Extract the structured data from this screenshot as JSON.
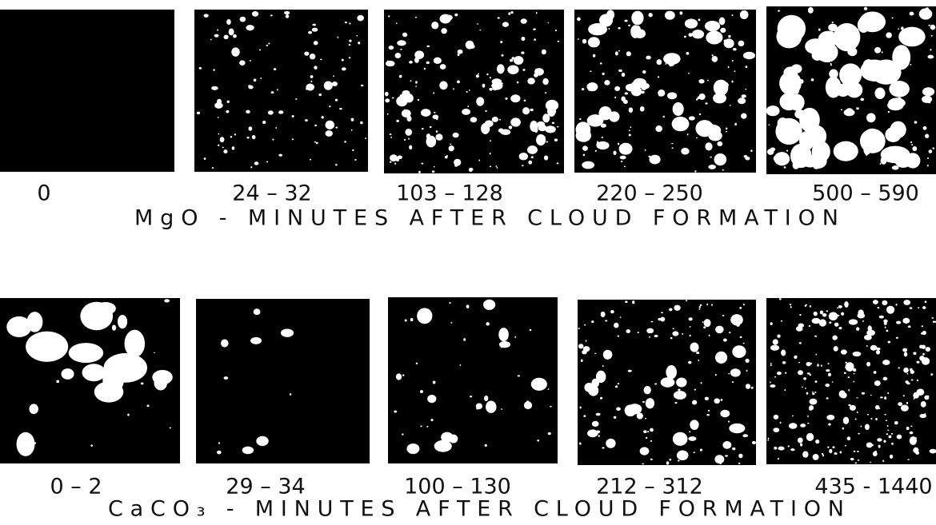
{
  "rows": [
    {
      "labels": [
        "0",
        "24 – 32",
        "103 – 128",
        "220 – 250",
        "500 – 590"
      ],
      "caption": "MgO  -  MINUTES  AFTER  CLOUD  FORMATION"
    },
    {
      "labels": [
        "0  –  2",
        "29 – 34",
        "100 – 130",
        "212 – 312",
        "435 - 1440"
      ],
      "caption": "CaCO₃ -  MINUTES  AFTER  CLOUD  FORMATION"
    }
  ]
}
